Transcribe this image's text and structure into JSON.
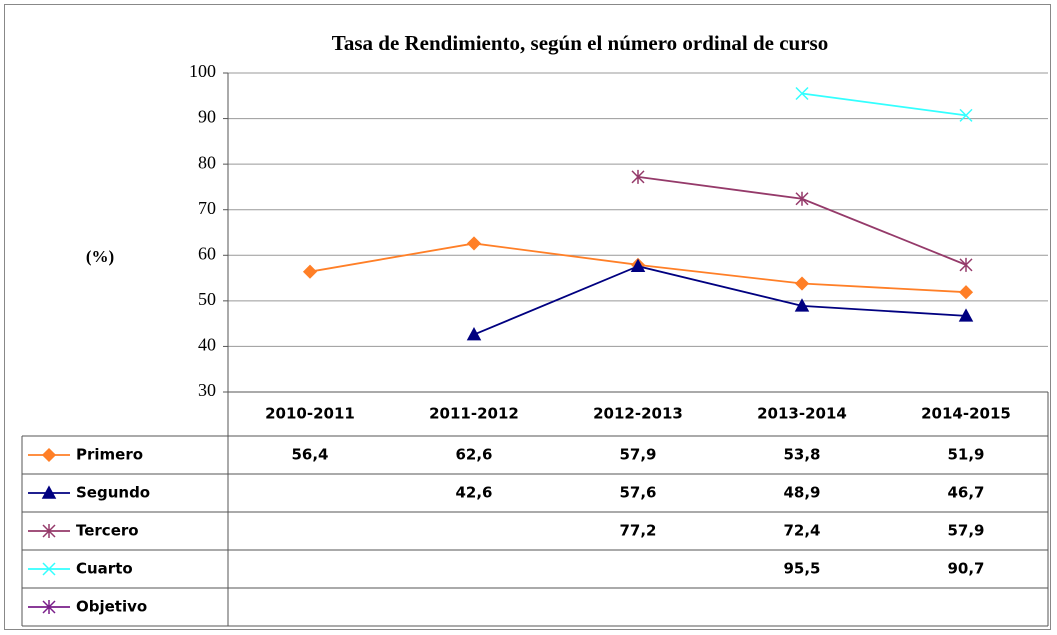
{
  "chart_data": {
    "type": "line",
    "title": "Tasa de Rendimiento, según el número ordinal de curso",
    "y_label": "(%)",
    "categories": [
      "2010-2011",
      "2011-2012",
      "2012-2013",
      "2013-2014",
      "2014-2015"
    ],
    "series": [
      {
        "name": "Primero",
        "color": "#ff7f27",
        "marker": "diamond",
        "values": [
          56.4,
          62.6,
          57.9,
          53.8,
          51.9
        ],
        "value_labels": [
          "56,4",
          "62,6",
          "57,9",
          "53,8",
          "51,9"
        ]
      },
      {
        "name": "Segundo",
        "color": "#000080",
        "marker": "triangle",
        "values": [
          null,
          42.6,
          57.6,
          48.9,
          46.7
        ],
        "value_labels": [
          null,
          "42,6",
          "57,6",
          "48,9",
          "46,7"
        ]
      },
      {
        "name": "Tercero",
        "color": "#953a6a",
        "marker": "asterisk",
        "values": [
          null,
          null,
          77.2,
          72.4,
          57.9
        ],
        "value_labels": [
          null,
          null,
          "77,2",
          "72,4",
          "57,9"
        ]
      },
      {
        "name": "Cuarto",
        "color": "#33ffff",
        "marker": "x",
        "values": [
          null,
          null,
          null,
          95.5,
          90.7
        ],
        "value_labels": [
          null,
          null,
          null,
          "95,5",
          "90,7"
        ]
      },
      {
        "name": "Objetivo",
        "color": "#7a1f8a",
        "marker": "asterisk",
        "values": [
          null,
          null,
          null,
          null,
          null
        ],
        "value_labels": [
          null,
          null,
          null,
          null,
          null
        ]
      }
    ],
    "ylim": [
      30,
      100
    ],
    "yticks": [
      30,
      40,
      50,
      60,
      70,
      80,
      90,
      100
    ],
    "grid": true
  }
}
